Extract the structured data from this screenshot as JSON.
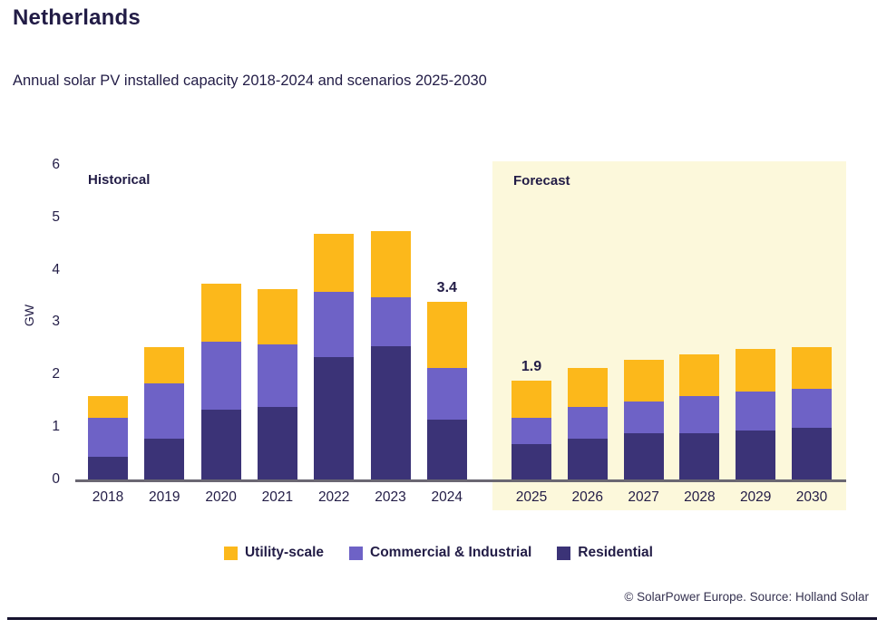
{
  "page": {
    "title": "Netherlands",
    "subtitle": "Annual solar PV installed capacity 2018-2024 and scenarios 2025-2030",
    "footer": "© SolarPower Europe. Source: Holland Solar"
  },
  "colors": {
    "utility_scale": "#fcb81b",
    "commercial_industrial": "#6e62c6",
    "residential": "#3b3377",
    "navy_text": "#221c46",
    "forecast_background": "#fcf8db",
    "axis_line": "#6a6772"
  },
  "chart_data": {
    "type": "bar",
    "stacked": true,
    "title": "Annual solar PV installed capacity 2018-2024 and scenarios 2025-2030",
    "xlabel": "",
    "ylabel": "GW",
    "ylim": [
      0,
      6
    ],
    "yticks": [
      0,
      1,
      2,
      3,
      4,
      5,
      6
    ],
    "grid": false,
    "legend_position": "bottom",
    "categories": [
      "2018",
      "2019",
      "2020",
      "2021",
      "2022",
      "2023",
      "2024",
      "2025",
      "2026",
      "2027",
      "2028",
      "2029",
      "2030"
    ],
    "zones": [
      {
        "label": "Historical",
        "from": "2018",
        "to": "2024"
      },
      {
        "label": "Forecast",
        "from": "2025",
        "to": "2030",
        "background": "#fcf8db"
      }
    ],
    "series": [
      {
        "name": "Residential",
        "color": "#3b3377",
        "values": [
          0.45,
          0.8,
          1.35,
          1.4,
          2.35,
          2.55,
          1.15,
          0.7,
          0.8,
          0.9,
          0.9,
          0.95,
          1.0
        ]
      },
      {
        "name": "Commercial & Industrial",
        "color": "#6e62c6",
        "values": [
          0.75,
          1.05,
          1.3,
          1.2,
          1.25,
          0.95,
          1.0,
          0.5,
          0.6,
          0.6,
          0.7,
          0.75,
          0.75
        ]
      },
      {
        "name": "Utility-scale",
        "color": "#fcb81b",
        "values": [
          0.4,
          0.7,
          1.1,
          1.05,
          1.1,
          1.25,
          1.25,
          0.7,
          0.75,
          0.8,
          0.8,
          0.8,
          0.8
        ]
      }
    ],
    "totals": [
      1.6,
      2.55,
      3.75,
      3.65,
      4.7,
      4.75,
      3.4,
      1.9,
      2.15,
      2.3,
      2.4,
      2.5,
      2.55
    ],
    "bar_value_labels": {
      "2024": "3.4",
      "2025": "1.9"
    }
  },
  "legend": {
    "items": [
      {
        "label": "Utility-scale",
        "color": "#fcb81b"
      },
      {
        "label": "Commercial & Industrial",
        "color": "#6e62c6"
      },
      {
        "label": "Residential",
        "color": "#3b3377"
      }
    ]
  }
}
